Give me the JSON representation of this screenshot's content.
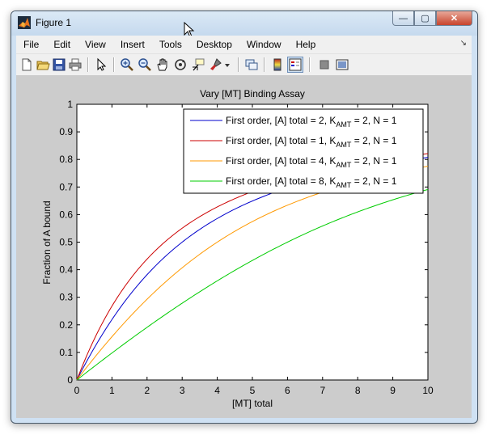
{
  "window": {
    "title": "Figure 1",
    "min_glyph": "—",
    "max_glyph": "▢",
    "close_glyph": "✕"
  },
  "menu": [
    "File",
    "Edit",
    "View",
    "Insert",
    "Tools",
    "Desktop",
    "Window",
    "Help"
  ],
  "toolbar": {
    "icons": [
      "new-figure-icon",
      "open-file-icon",
      "save-icon",
      "print-icon",
      "edit-plot-arrow-icon",
      "zoom-in-icon",
      "zoom-out-icon",
      "pan-hand-icon",
      "rotate-3d-icon",
      "data-cursor-icon",
      "brush-icon",
      "brush-dropdown-icon",
      "link-plot-icon",
      "colorbar-icon",
      "legend-icon",
      "hide-plot-tools-icon",
      "show-plot-tools-icon"
    ]
  },
  "chart_data": {
    "type": "line",
    "title": "Vary [MT] Binding Assay",
    "xlabel": "[MT] total",
    "ylabel": "Fraction of A bound",
    "xlim": [
      0,
      10
    ],
    "ylim": [
      0,
      1
    ],
    "xticks": [
      "0",
      "1",
      "2",
      "3",
      "4",
      "5",
      "6",
      "7",
      "8",
      "9",
      "10"
    ],
    "yticks": [
      "0",
      "0.1",
      "0.2",
      "0.3",
      "0.4",
      "0.5",
      "0.6",
      "0.7",
      "0.8",
      "0.9",
      "1"
    ],
    "grid": false,
    "legend_position": "top-right",
    "series": [
      {
        "color": "#0000cc",
        "legend_main": "First order, [A] total = 2, K",
        "legend_sub": "AMT",
        "legend_tail": " = 2, N = 1",
        "atot": 2,
        "k": 2,
        "x": [
          0,
          1,
          2,
          3,
          4,
          5,
          6,
          7,
          8,
          9,
          10
        ],
        "y": [
          0,
          0.3,
          0.44,
          0.55,
          0.63,
          0.69,
          0.74,
          0.78,
          0.8,
          0.81,
          0.83
        ]
      },
      {
        "color": "#cc0000",
        "legend_main": "First order, [A] total = 1, K",
        "legend_sub": "AMT",
        "legend_tail": " = 2, N = 1",
        "atot": 1,
        "k": 2,
        "x": [
          0,
          1,
          2,
          3,
          4,
          5,
          6,
          7,
          8,
          9,
          10
        ],
        "y": [
          0,
          0.34,
          0.48,
          0.59,
          0.66,
          0.71,
          0.75,
          0.78,
          0.81,
          0.82,
          0.84
        ]
      },
      {
        "color": "#ff9900",
        "legend_main": "First order, [A] total = 4, K",
        "legend_sub": "AMT",
        "legend_tail": " = 2, N = 1",
        "atot": 4,
        "k": 2,
        "x": [
          0,
          1,
          2,
          3,
          4,
          5,
          6,
          7,
          8,
          9,
          10
        ],
        "y": [
          0,
          0.22,
          0.36,
          0.46,
          0.54,
          0.61,
          0.66,
          0.7,
          0.73,
          0.76,
          0.78
        ]
      },
      {
        "color": "#00cc00",
        "legend_main": "First order, [A] total = 8, K",
        "legend_sub": "AMT",
        "legend_tail": " = 2, N = 1",
        "atot": 8,
        "k": 2,
        "x": [
          0,
          1,
          2,
          3,
          4,
          5,
          6,
          7,
          8,
          9,
          10
        ],
        "y": [
          0,
          0.12,
          0.22,
          0.31,
          0.39,
          0.46,
          0.52,
          0.57,
          0.62,
          0.66,
          0.69
        ]
      }
    ]
  }
}
